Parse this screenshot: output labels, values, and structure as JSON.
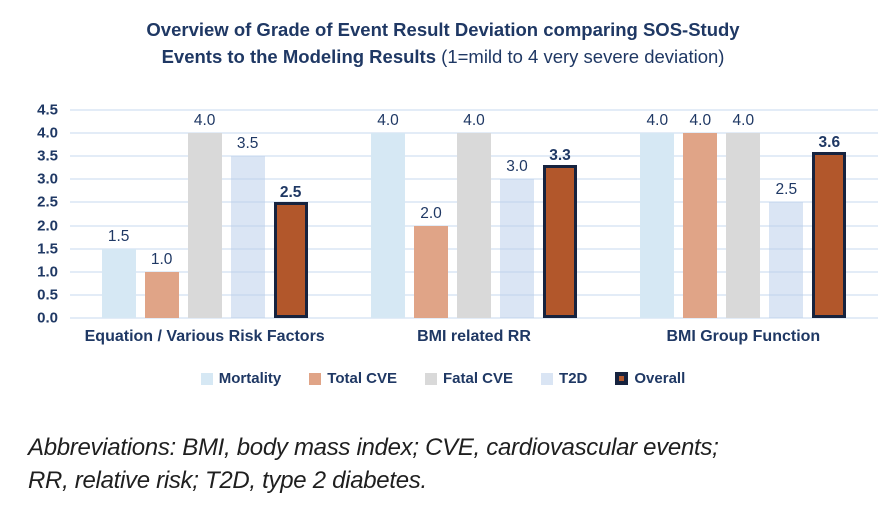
{
  "title": {
    "line1": "Overview of Grade of Event Result Deviation comparing SOS-Study",
    "line2_bold": "Events to the Modeling Results",
    "line2_normal": " (1=mild to 4 very severe deviation)"
  },
  "chart_data": {
    "type": "bar",
    "title": "Overview of Grade of Event Result Deviation comparing SOS-Study Events to the Modeling Results (1=mild to 4 very severe deviation)",
    "categories": [
      "Equation / Various Risk Factors",
      "BMI related RR",
      "BMI Group Function"
    ],
    "series": [
      {
        "name": "Mortality",
        "color": "#d6e8f4",
        "values": [
          1.5,
          4.0,
          4.0
        ]
      },
      {
        "name": "Total CVE",
        "color": "#e0a487",
        "values": [
          1.0,
          2.0,
          4.0
        ]
      },
      {
        "name": "Fatal CVE",
        "color": "#d9d9d9",
        "values": [
          4.0,
          4.0,
          4.0
        ]
      },
      {
        "name": "T2D",
        "color": "rgba(187,207,235,0.55)",
        "values": [
          3.5,
          3.0,
          2.5
        ]
      },
      {
        "name": "Overall",
        "color": "#b2572b",
        "border_color": "#16233f",
        "bold_labels": true,
        "values": [
          2.5,
          3.3,
          3.6
        ]
      }
    ],
    "ylim": [
      0,
      4.5
    ],
    "ytick_step": 0.5,
    "grid": true,
    "legend_position": "bottom",
    "value_labels": "one_decimal",
    "text_color": "#1f3864",
    "gridline_color": "#e3ecf7"
  },
  "footnote": {
    "lines": [
      "Abbreviations: BMI, body mass index; CVE, cardiovascular events;",
      "RR, relative risk; T2D, type 2 diabetes."
    ]
  }
}
